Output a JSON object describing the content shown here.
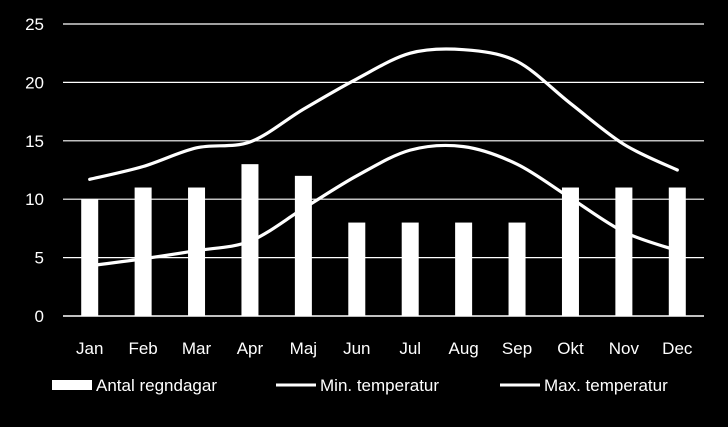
{
  "chart_data": {
    "type": "bar",
    "title": "",
    "xlabel": "",
    "ylabel": "",
    "ylim": [
      0,
      25
    ],
    "yticks": [
      "0",
      "5",
      "10",
      "15",
      "20",
      "25"
    ],
    "grid": true,
    "legend_position": "bottom",
    "categories": [
      "Jan",
      "Feb",
      "Mar",
      "Apr",
      "Maj",
      "Jun",
      "Jul",
      "Aug",
      "Sep",
      "Okt",
      "Nov",
      "Dec"
    ],
    "series": [
      {
        "name": "Antal regndagar",
        "type": "bar",
        "color": "#ffffff",
        "values": [
          10,
          11,
          11,
          13,
          12,
          8,
          8,
          8,
          8,
          11,
          11,
          11
        ]
      },
      {
        "name": "Min. temperatur",
        "type": "line",
        "color": "#ffffff",
        "values": [
          4.3,
          4.9,
          5.6,
          6.4,
          9.2,
          12.0,
          14.2,
          14.5,
          13.0,
          10.1,
          7.2,
          5.6
        ]
      },
      {
        "name": "Max. temperatur",
        "type": "line",
        "color": "#ffffff",
        "values": [
          11.7,
          12.8,
          14.4,
          14.9,
          17.7,
          20.3,
          22.5,
          22.8,
          21.8,
          18.2,
          14.7,
          12.5
        ]
      }
    ]
  }
}
